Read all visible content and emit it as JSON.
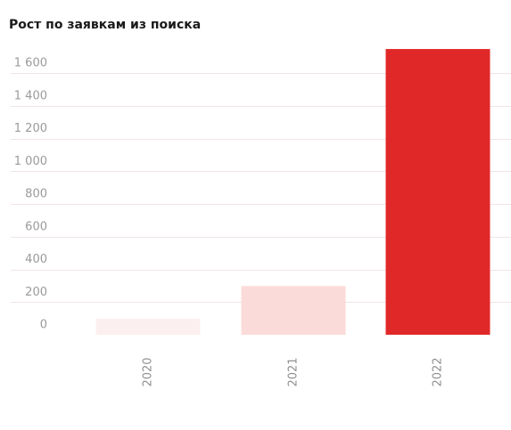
{
  "chart_data": {
    "type": "bar",
    "title": "Рост по заявкам из поиска",
    "xlabel": "",
    "ylabel": "",
    "categories": [
      "2020",
      "2021",
      "2022"
    ],
    "values": [
      0,
      200,
      1650
    ],
    "ylim": [
      0,
      1700
    ],
    "yticks": [
      0,
      200,
      400,
      600,
      800,
      1000,
      1200,
      1400,
      1600
    ],
    "ytick_labels": [
      "0",
      "200",
      "400",
      "600",
      "800",
      "1 000",
      "1 200",
      "1 400",
      "1 600"
    ],
    "bar_colors": [
      "#fcefef",
      "#fbdbd9",
      "#e12828"
    ],
    "grid": true,
    "grid_color": "#f0e4e4"
  }
}
